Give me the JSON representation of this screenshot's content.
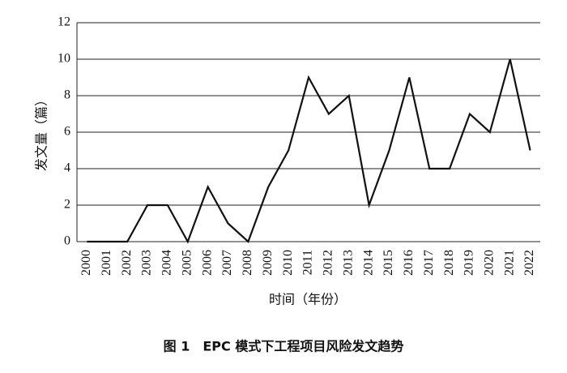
{
  "chart_data": {
    "type": "line",
    "caption": "图 1　EPC 模式下工程项目风险发文趋势",
    "x_label": "时间（年份）",
    "y_label": "发文量（篇）",
    "categories": [
      "2000",
      "2001",
      "2002",
      "2003",
      "2004",
      "2005",
      "2006",
      "2007",
      "2008",
      "2009",
      "2010",
      "2011",
      "2012",
      "2013",
      "2014",
      "2015",
      "2016",
      "2017",
      "2018",
      "2019",
      "2020",
      "2021",
      "2022"
    ],
    "values": [
      0,
      0,
      0,
      2,
      2,
      0,
      3,
      1,
      0,
      3,
      5,
      9,
      7,
      8,
      2,
      5,
      9,
      4,
      4,
      7,
      6,
      10,
      5
    ],
    "color": "#111111",
    "ylim": [
      0,
      12
    ],
    "yticks": [
      0,
      2,
      4,
      6,
      8,
      10,
      12
    ],
    "grid": true
  }
}
